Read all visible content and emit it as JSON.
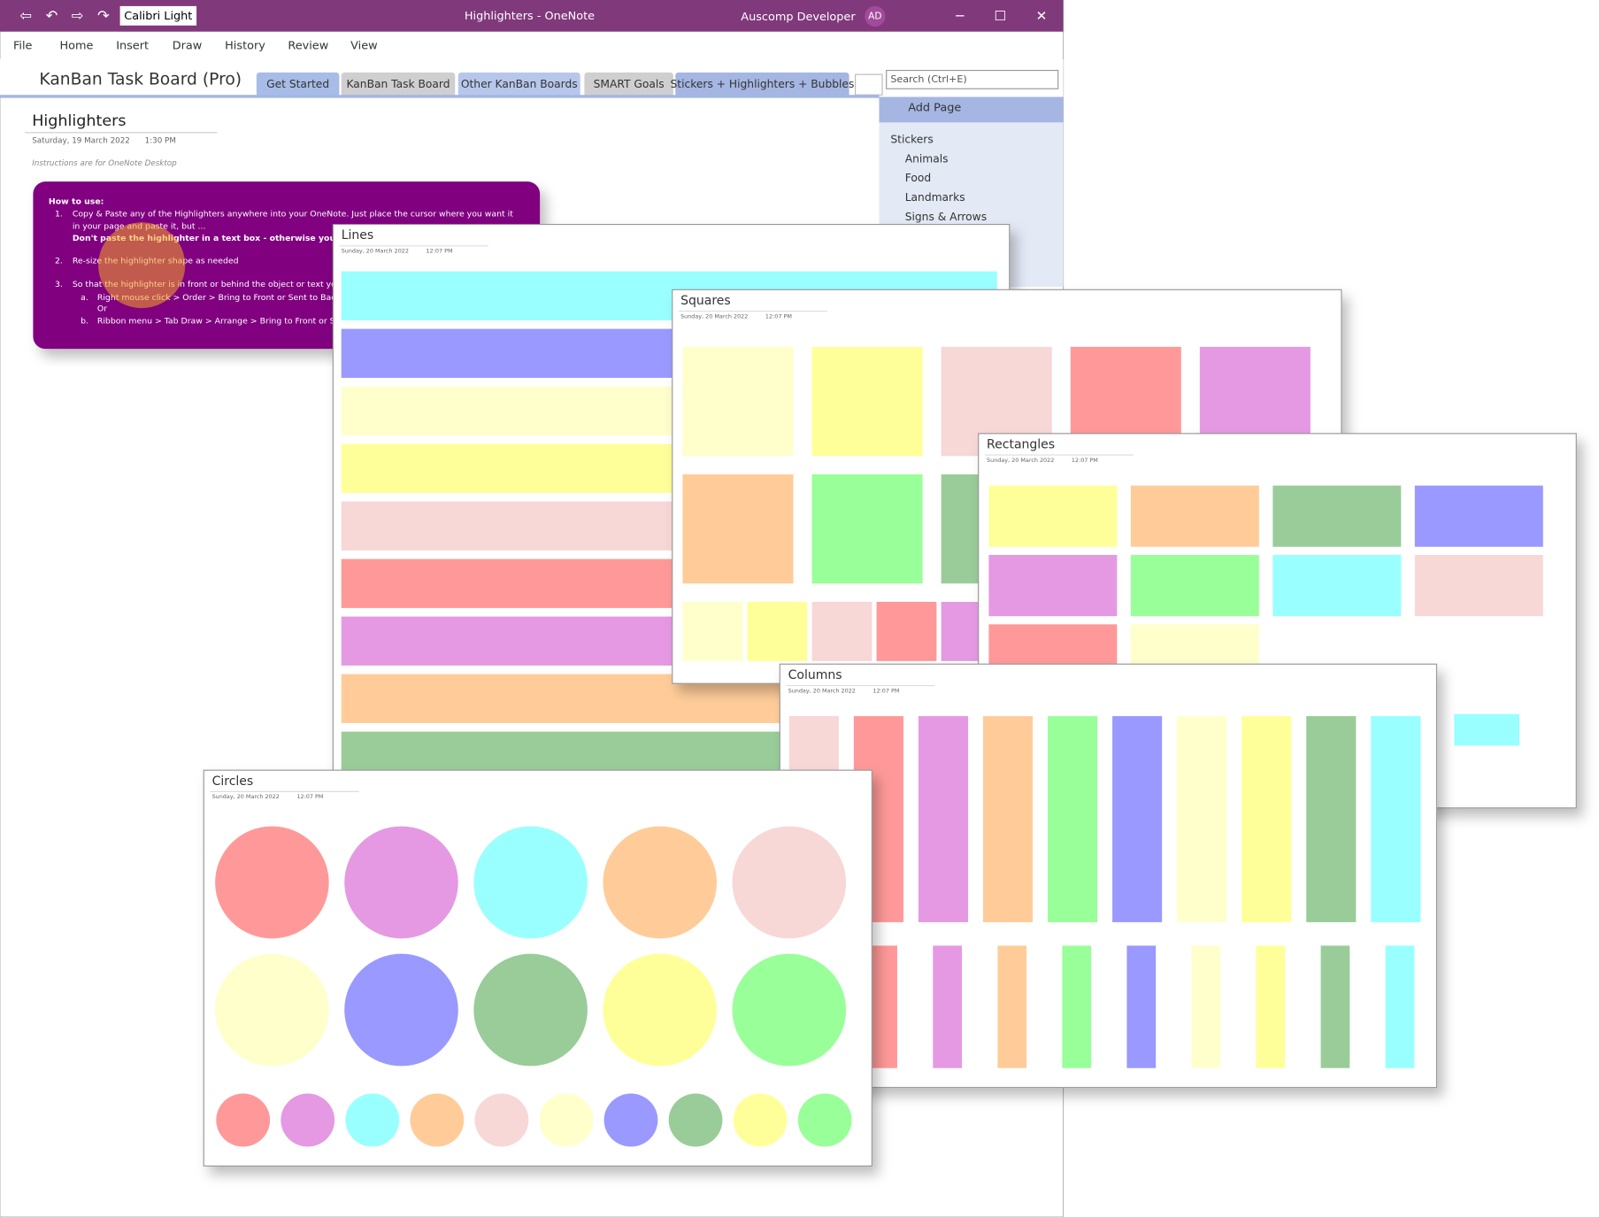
{
  "title_bar": {
    "font": "Calibri Light",
    "title": "Highlighters - OneNote",
    "user": "Auscomp Developer",
    "initials": "AD"
  },
  "menu": [
    "File",
    "Home",
    "Insert",
    "Draw",
    "History",
    "Review",
    "View"
  ],
  "notebook": {
    "name": "KanBan Task Board (Pro)",
    "tabs": [
      "Get Started",
      "KanBan Task Board",
      "Other KanBan Boards",
      "SMART Goals",
      "Stickers + Highlighters + Bubbles"
    ],
    "search": "Search (Ctrl+E)"
  },
  "pages_panel": {
    "add_page": "Add Page",
    "pages": [
      "Stickers",
      "Animals",
      "Food",
      "Landmarks",
      "Signs & Arrows"
    ]
  },
  "page": {
    "title": "Highlighters",
    "date": "Saturday, 19 March 2022",
    "time": "1:30 PM",
    "note": "Instructions are for OneNote Desktop",
    "how_to": {
      "heading": "How to use:",
      "steps": [
        {
          "number": "1.",
          "lines": [
            "Copy & Paste any of the Highlighters anywhere into your OneNote. Just place the cursor where you want it",
            "in your page and paste it, but ...",
            "Don't paste the highlighter in a text box - otherwise you won't b"
          ]
        },
        {
          "number": "2.",
          "lines": [
            "Re-size the highlighter shape as needed"
          ]
        },
        {
          "number": "3.",
          "lines": [
            "So that the highlighter is in front or behind the object or text you"
          ]
        }
      ],
      "options": [
        {
          "letter": "a.",
          "text": "Right mouse click > Order > Bring to Front or Sent to Back"
        },
        {
          "letter": "",
          "text": "Or"
        },
        {
          "letter": "b.",
          "text": "Ribbon menu > Tab Draw > Arrange > Bring to Front or Sen"
        }
      ]
    }
  },
  "windows": [
    {
      "title": "Lines",
      "date": "Sunday, 20 March 2022",
      "time": "12:07 PM"
    },
    {
      "title": "Squares",
      "date": "Sunday, 20 March 2022",
      "time": "12:07 PM"
    },
    {
      "title": "Rectangles",
      "date": "Sunday, 20 March 2022",
      "time": "12:07 PM"
    },
    {
      "title": "Columns",
      "date": "Sunday, 20 March 2022",
      "time": "12:07 PM"
    },
    {
      "title": "Circles",
      "date": "Sunday, 20 March 2022",
      "time": "12:07 PM"
    }
  ]
}
